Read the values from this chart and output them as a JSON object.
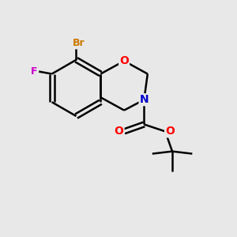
{
  "background_color": "#e8e8e8",
  "bond_color": "#000000",
  "atom_colors": {
    "Br": "#cc7700",
    "F": "#cc00cc",
    "O": "#ff0000",
    "N": "#0000cc"
  },
  "figsize": [
    3.0,
    3.0
  ],
  "dpi": 100,
  "xlim": [
    0,
    10
  ],
  "ylim": [
    0,
    10
  ]
}
